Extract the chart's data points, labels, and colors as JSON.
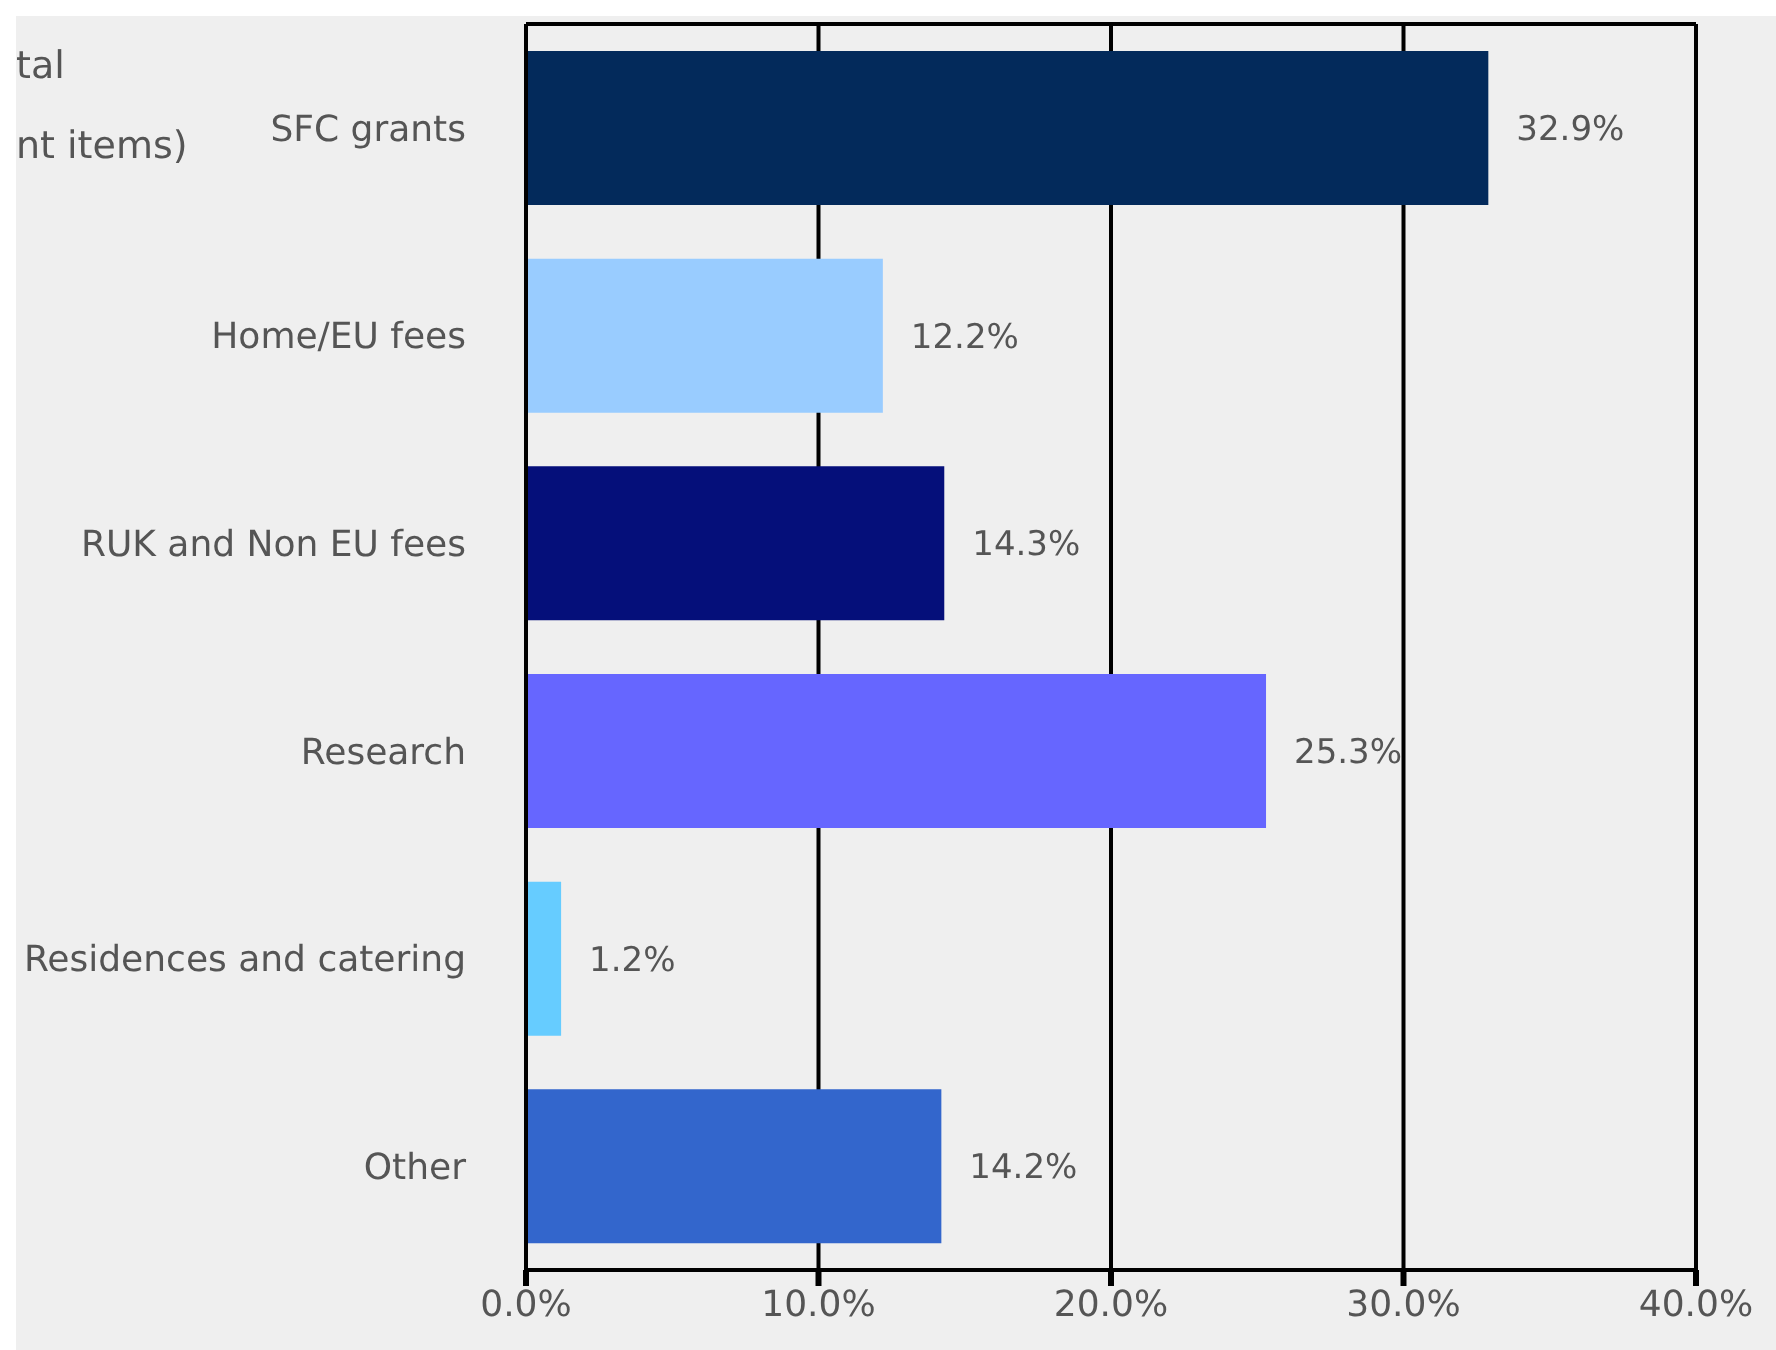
{
  "chart_data": {
    "type": "bar",
    "orientation": "horizontal",
    "annotations": [
      "tal",
      "nt items)"
    ],
    "categories": [
      "SFC grants",
      "Home/EU fees",
      "RUK and Non EU fees",
      "Research",
      "Residences and catering",
      "Other"
    ],
    "values": [
      32.9,
      12.2,
      14.3,
      25.3,
      1.2,
      14.2
    ],
    "value_labels": [
      "32.9%",
      "12.2%",
      "14.3%",
      "25.3%",
      "1.2%",
      "14.2%"
    ],
    "colors": [
      "#032a5b",
      "#99ccff",
      "#050f7a",
      "#6666ff",
      "#66ccff",
      "#3366cc"
    ],
    "xlim": [
      0,
      40
    ],
    "xticks": [
      {
        "value": 0,
        "label": "0.0%"
      },
      {
        "value": 10,
        "label": "10.0%"
      },
      {
        "value": 20,
        "label": "20.0%"
      },
      {
        "value": 30,
        "label": "30.0%"
      },
      {
        "value": 40,
        "label": "40.0%"
      }
    ],
    "grid": "x"
  }
}
